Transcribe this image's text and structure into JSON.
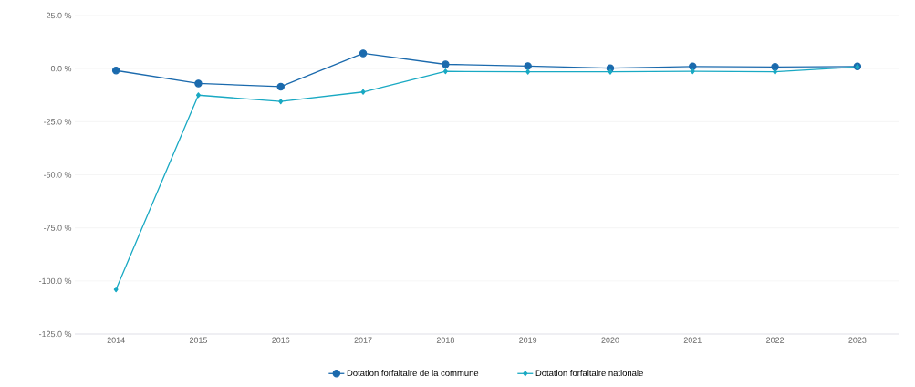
{
  "chart_data": {
    "type": "line",
    "categories": [
      "2014",
      "2015",
      "2016",
      "2017",
      "2018",
      "2019",
      "2020",
      "2021",
      "2022",
      "2023"
    ],
    "series": [
      {
        "name": "Dotation forfaitaire de la commune",
        "color": "#1b6aad",
        "marker": "circle",
        "values": [
          -0.9,
          -7,
          -8.5,
          7.2,
          2,
          1.2,
          0.2,
          1,
          0.8,
          1
        ]
      },
      {
        "name": "Dotation forfaitaire nationale",
        "color": "#19a9c3",
        "marker": "diamond",
        "values": [
          -104,
          -12.5,
          -15.5,
          -11,
          -1.3,
          -1.5,
          -1.5,
          -1.3,
          -1.5,
          0.8
        ]
      }
    ],
    "ylim": [
      -125,
      25
    ],
    "yticks": [
      {
        "value": -125,
        "label": "-125.0 %"
      },
      {
        "value": -100,
        "label": "-100.0 %"
      },
      {
        "value": -75,
        "label": "-75.0 %"
      },
      {
        "value": -50,
        "label": "-50.0 %"
      },
      {
        "value": -25,
        "label": "-25.0 %"
      },
      {
        "value": 0,
        "label": "0.0 %"
      },
      {
        "value": 25,
        "label": "25.0 %"
      }
    ],
    "grid": "y",
    "legend": "bottom",
    "line_style": "solid"
  }
}
